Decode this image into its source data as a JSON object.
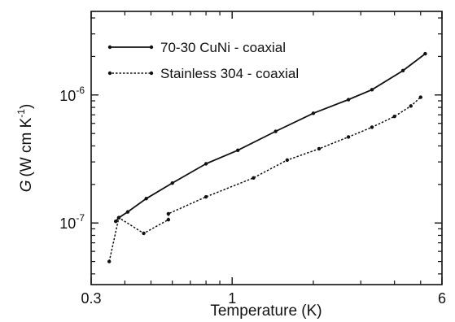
{
  "chart_data": {
    "type": "line",
    "xlabel": "Temperature (K)",
    "ylabel_italic": "G",
    "ylabel_rest": "(W cm K",
    "ylabel_sup": "-1",
    "ylabel_close": ")",
    "x_scale": "log",
    "y_scale": "log",
    "xlim": [
      0.3,
      6
    ],
    "ylim": [
      0.033,
      4.5
    ],
    "y_unit_exponent": -6,
    "x_ticks": [
      {
        "value": 0.3,
        "label": "0.3"
      },
      {
        "value": 1,
        "label": "1"
      },
      {
        "value": 6,
        "label": "6"
      }
    ],
    "y_ticks": [
      {
        "value": 0.1,
        "base": "10",
        "exp": "-7"
      },
      {
        "value": 1,
        "base": "10",
        "exp": "-6"
      }
    ],
    "grid": false,
    "legend_position": "top-left",
    "series": [
      {
        "name": "70-30 CuNi - coaxial",
        "style": "solid",
        "color": "#111111",
        "points": [
          [
            0.37,
            0.103
          ],
          [
            0.38,
            0.11
          ],
          [
            0.41,
            0.122
          ],
          [
            0.48,
            0.155
          ],
          [
            0.6,
            0.205
          ],
          [
            0.8,
            0.29
          ],
          [
            1.05,
            0.37
          ],
          [
            1.45,
            0.52
          ],
          [
            2.0,
            0.72
          ],
          [
            2.7,
            0.92
          ],
          [
            3.3,
            1.1
          ],
          [
            4.3,
            1.55
          ],
          [
            5.2,
            2.1
          ]
        ]
      },
      {
        "name": "Stainless 304 - coaxial",
        "style": "dotted",
        "color": "#111111",
        "points": [
          [
            0.35,
            0.05
          ],
          [
            0.38,
            0.11
          ],
          [
            0.47,
            0.083
          ],
          [
            0.58,
            0.106
          ],
          [
            0.58,
            0.118
          ],
          [
            0.8,
            0.16
          ],
          [
            1.2,
            0.225
          ],
          [
            1.6,
            0.31
          ],
          [
            2.1,
            0.38
          ],
          [
            2.7,
            0.47
          ],
          [
            3.3,
            0.56
          ],
          [
            4.0,
            0.68
          ],
          [
            4.6,
            0.82
          ],
          [
            5.0,
            0.96
          ]
        ]
      }
    ]
  }
}
